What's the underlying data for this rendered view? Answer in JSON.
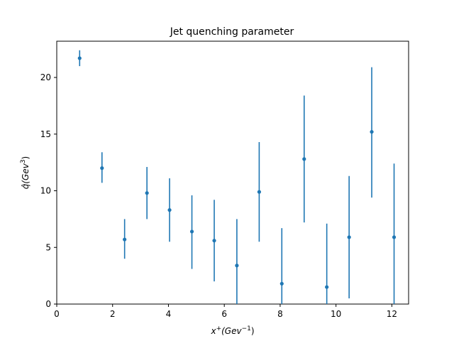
{
  "chart_data": {
    "type": "scatter",
    "title": "Jet quenching parameter",
    "xlabel": {
      "base": "x",
      "sup": "+",
      "unit_open": "(Gev",
      "unit_sup": "−1",
      "unit_close": ")"
    },
    "ylabel": {
      "base": "q̂",
      "unit_open": "(Gev",
      "unit_sup": "3",
      "unit_close": ")"
    },
    "xlim": [
      0,
      12.6
    ],
    "ylim": [
      0,
      23.2
    ],
    "xticks": [
      0,
      2,
      4,
      6,
      8,
      10,
      12
    ],
    "yticks": [
      0,
      5,
      10,
      15,
      20
    ],
    "grid": false,
    "color": "#1f77b4",
    "series": [
      {
        "points": [
          {
            "x": 0.82,
            "y": 21.7,
            "err_low": 21.0,
            "err_high": 22.4
          },
          {
            "x": 1.62,
            "y": 12.0,
            "err_low": 10.7,
            "err_high": 13.4
          },
          {
            "x": 2.43,
            "y": 5.7,
            "err_low": 4.0,
            "err_high": 7.5
          },
          {
            "x": 3.23,
            "y": 9.8,
            "err_low": 7.5,
            "err_high": 12.1
          },
          {
            "x": 4.04,
            "y": 8.3,
            "err_low": 5.5,
            "err_high": 11.1
          },
          {
            "x": 4.84,
            "y": 6.4,
            "err_low": 3.1,
            "err_high": 9.6
          },
          {
            "x": 5.64,
            "y": 5.6,
            "err_low": 2.0,
            "err_high": 9.2
          },
          {
            "x": 6.45,
            "y": 3.4,
            "err_low": 0.0,
            "err_high": 7.5
          },
          {
            "x": 7.25,
            "y": 9.9,
            "err_low": 5.5,
            "err_high": 14.3
          },
          {
            "x": 8.06,
            "y": 1.8,
            "err_low": 0.0,
            "err_high": 6.7
          },
          {
            "x": 8.86,
            "y": 12.8,
            "err_low": 7.2,
            "err_high": 18.4
          },
          {
            "x": 9.67,
            "y": 1.5,
            "err_low": 0.0,
            "err_high": 7.1
          },
          {
            "x": 10.47,
            "y": 5.9,
            "err_low": 0.5,
            "err_high": 11.3
          },
          {
            "x": 11.28,
            "y": 15.2,
            "err_low": 9.4,
            "err_high": 20.9
          },
          {
            "x": 12.08,
            "y": 5.9,
            "err_low": 0.0,
            "err_high": 12.4
          }
        ]
      }
    ]
  }
}
